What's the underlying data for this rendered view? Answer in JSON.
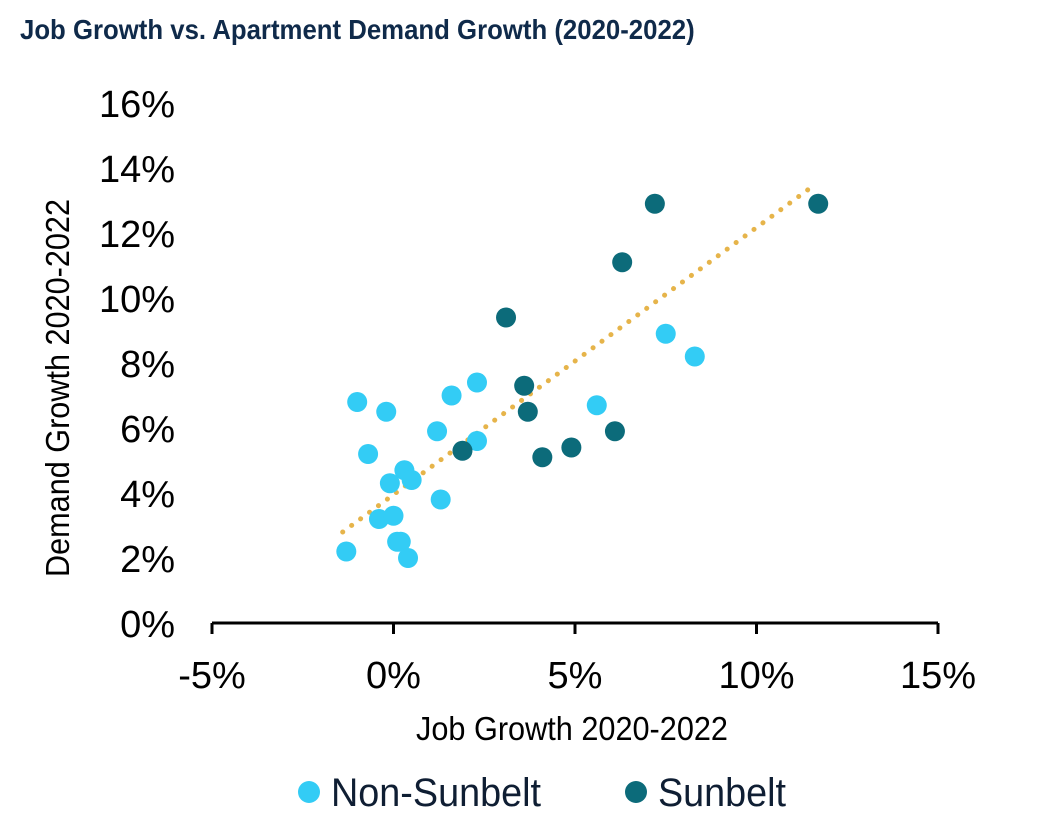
{
  "chart_data": {
    "type": "scatter",
    "title": "Job Growth vs. Apartment Demand Growth (2020-2022)",
    "xlabel": "Job Growth 2020-2022",
    "ylabel": "Demand Growth 2020-2022",
    "xlim": [
      -5,
      15
    ],
    "ylim": [
      0,
      16
    ],
    "x_ticks": [
      -5,
      0,
      5,
      10,
      15
    ],
    "x_tick_labels": [
      "-5%",
      "0%",
      "5%",
      "10%",
      "15%"
    ],
    "y_ticks": [
      0,
      2,
      4,
      6,
      8,
      10,
      12,
      14,
      16
    ],
    "y_tick_labels": [
      "0%",
      "2%",
      "4%",
      "6%",
      "8%",
      "10%",
      "12%",
      "14%",
      "16%"
    ],
    "grid": false,
    "legend_position": "bottom",
    "series": [
      {
        "name": "Non-Sunbelt",
        "color": "#33ccf5",
        "points": [
          {
            "x": -1.3,
            "y": 2.2
          },
          {
            "x": -1.0,
            "y": 6.8
          },
          {
            "x": -0.7,
            "y": 5.2
          },
          {
            "x": -0.4,
            "y": 3.2
          },
          {
            "x": -0.2,
            "y": 6.5
          },
          {
            "x": -0.1,
            "y": 4.3
          },
          {
            "x": 0.0,
            "y": 3.3
          },
          {
            "x": 0.1,
            "y": 2.5
          },
          {
            "x": 0.2,
            "y": 2.5
          },
          {
            "x": 0.3,
            "y": 4.7
          },
          {
            "x": 0.4,
            "y": 2.0
          },
          {
            "x": 0.5,
            "y": 4.4
          },
          {
            "x": 1.2,
            "y": 5.9
          },
          {
            "x": 1.3,
            "y": 3.8
          },
          {
            "x": 1.6,
            "y": 7.0
          },
          {
            "x": 2.3,
            "y": 5.6
          },
          {
            "x": 2.3,
            "y": 7.4
          },
          {
            "x": 5.6,
            "y": 6.7
          },
          {
            "x": 7.5,
            "y": 8.9
          },
          {
            "x": 8.3,
            "y": 8.2
          }
        ]
      },
      {
        "name": "Sunbelt",
        "color": "#0c6b7a",
        "points": [
          {
            "x": 1.9,
            "y": 5.3
          },
          {
            "x": 3.1,
            "y": 9.4
          },
          {
            "x": 3.6,
            "y": 7.3
          },
          {
            "x": 3.7,
            "y": 6.5
          },
          {
            "x": 4.1,
            "y": 5.1
          },
          {
            "x": 4.9,
            "y": 5.4
          },
          {
            "x": 6.1,
            "y": 5.9
          },
          {
            "x": 6.3,
            "y": 11.1
          },
          {
            "x": 7.2,
            "y": 12.9
          },
          {
            "x": 11.7,
            "y": 12.9
          }
        ]
      }
    ],
    "trendline": {
      "style": "dotted",
      "color": "#e6b44a",
      "x": [
        -1.4,
        11.5
      ],
      "y": [
        2.8,
        13.4
      ]
    }
  }
}
